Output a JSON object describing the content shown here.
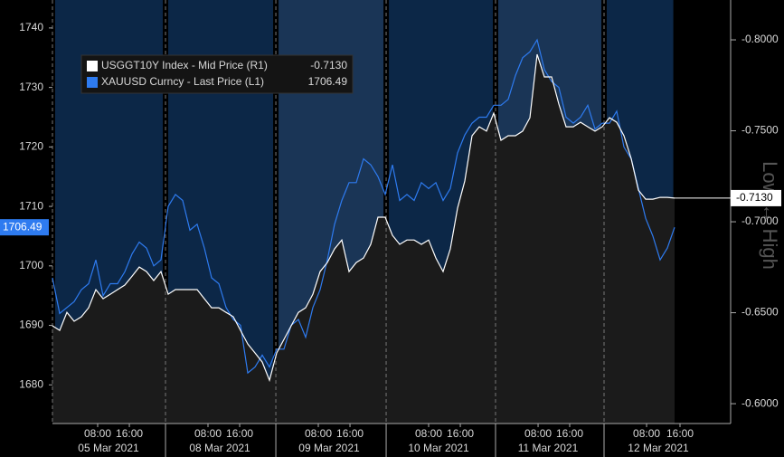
{
  "chart_data": {
    "type": "line",
    "x": [
      0,
      1,
      2,
      3,
      4,
      5,
      6,
      7,
      8,
      9,
      10,
      11,
      12,
      13,
      14,
      15,
      16,
      17,
      18,
      19,
      20,
      21,
      22,
      23,
      24,
      25,
      26,
      27,
      28,
      29,
      30,
      31,
      32,
      33,
      34,
      35,
      36,
      37,
      38,
      39,
      40,
      41,
      42,
      43,
      44,
      45,
      46,
      47,
      48,
      49,
      50,
      51,
      52,
      53,
      54,
      55,
      56,
      57,
      58,
      59,
      60,
      61,
      62,
      63,
      64,
      65,
      66,
      67,
      68,
      69,
      70,
      71,
      72,
      73,
      74,
      75,
      76,
      77,
      78,
      79,
      80,
      81,
      82,
      83,
      84,
      85,
      86
    ],
    "series": [
      {
        "name": "USGGT10Y Index - Mid Price (R1)",
        "last_label": "-0.7130",
        "color": "#ffffff",
        "area_color": "#1b1b1b",
        "axis": "y2",
        "values": [
          -0.6428,
          -0.6403,
          -0.6502,
          -0.6453,
          -0.6478,
          -0.6527,
          -0.6627,
          -0.6577,
          -0.6602,
          -0.6627,
          -0.6652,
          -0.6701,
          -0.6751,
          -0.6726,
          -0.6677,
          -0.6726,
          -0.6602,
          -0.6627,
          -0.6627,
          -0.6627,
          -0.6627,
          -0.6577,
          -0.6527,
          -0.6527,
          -0.6502,
          -0.6478,
          -0.6403,
          -0.6328,
          -0.6279,
          -0.6229,
          -0.6129,
          -0.6279,
          -0.6353,
          -0.6428,
          -0.6502,
          -0.6527,
          -0.6602,
          -0.6726,
          -0.6776,
          -0.6851,
          -0.69,
          -0.6726,
          -0.6776,
          -0.6801,
          -0.6876,
          -0.7025,
          -0.7025,
          -0.6925,
          -0.6876,
          -0.69,
          -0.69,
          -0.6876,
          -0.69,
          -0.6801,
          -0.6726,
          -0.6851,
          -0.7075,
          -0.7224,
          -0.7473,
          -0.7522,
          -0.7498,
          -0.7597,
          -0.7448,
          -0.7473,
          -0.7473,
          -0.7498,
          -0.7572,
          -0.792,
          -0.7796,
          -0.7796,
          -0.7647,
          -0.7522,
          -0.7522,
          -0.7547,
          -0.7522,
          -0.7498,
          -0.7522,
          -0.7572,
          -0.7547,
          -0.7473,
          -0.7348,
          -0.7174,
          -0.7124,
          -0.7124,
          -0.7134,
          -0.7134,
          -0.713
        ]
      },
      {
        "name": "XAUUSD Curncy - Last Price (L1)",
        "last_label": "1706.49",
        "color": "#2e7bf0",
        "axis": "y",
        "values": [
          1698,
          1692,
          1693,
          1694,
          1696,
          1697,
          1701,
          1695,
          1697,
          1697,
          1699,
          1702,
          1704,
          1703,
          1700,
          1701,
          1710,
          1712,
          1711,
          1706,
          1707,
          1703,
          1698,
          1697,
          1693,
          1691,
          1690,
          1682,
          1683,
          1685,
          1683,
          1686,
          1686,
          1690,
          1691,
          1688,
          1693,
          1696,
          1701,
          1707,
          1711,
          1714,
          1714,
          1718,
          1717,
          1715,
          1712,
          1717,
          1711,
          1712,
          1711,
          1714,
          1713,
          1714,
          1711,
          1713,
          1719,
          1722,
          1724,
          1725,
          1725,
          1727,
          1727,
          1728,
          1732,
          1735,
          1736,
          1738,
          1733,
          1731,
          1730,
          1725,
          1724,
          1725,
          1727,
          1723,
          1724,
          1724,
          1726,
          1720,
          1718,
          1713,
          1708,
          1705,
          1701,
          1703,
          1706.49
        ]
      }
    ],
    "xlim": [
      0,
      93.75
    ],
    "xticks": [
      {
        "value": 6.25,
        "label": "08:00"
      },
      {
        "value": 10.63,
        "label": "16:00"
      },
      {
        "value": 21.5,
        "label": "08:00"
      },
      {
        "value": 25.88,
        "label": "16:00"
      },
      {
        "value": 36.75,
        "label": "08:00"
      },
      {
        "value": 41.13,
        "label": "16:00"
      },
      {
        "value": 52,
        "label": "08:00"
      },
      {
        "value": 56.38,
        "label": "16:00"
      },
      {
        "value": 67.13,
        "label": "08:00"
      },
      {
        "value": 71.5,
        "label": "16:00"
      },
      {
        "value": 82.13,
        "label": "08:00"
      },
      {
        "value": 86.75,
        "label": "16:00"
      }
    ],
    "date_labels": [
      {
        "value": 7.75,
        "label": "05 Mar 2021"
      },
      {
        "value": 23.13,
        "label": "08 Mar 2021"
      },
      {
        "value": 38.25,
        "label": "09 Mar 2021"
      },
      {
        "value": 53.38,
        "label": "10 Mar 2021"
      },
      {
        "value": 68.5,
        "label": "11 Mar 2021"
      },
      {
        "value": 83.75,
        "label": "12 Mar 2021"
      }
    ],
    "ylim": [
      1673.5,
      1744.7
    ],
    "yticks": [
      1680,
      1690,
      1700,
      1710,
      1720,
      1730,
      1740
    ],
    "y2lim": [
      -0.5891,
      -0.8219
    ],
    "y2ticks": [
      {
        "value": -0.8,
        "label": "-0.8000"
      },
      {
        "value": -0.75,
        "label": "-0.7500"
      },
      {
        "value": -0.7,
        "label": "-0.7000"
      },
      {
        "value": -0.65,
        "label": "-0.6500"
      },
      {
        "value": -0.6,
        "label": "-0.6000"
      }
    ],
    "y2_label": "Low ↔ High"
  }
}
